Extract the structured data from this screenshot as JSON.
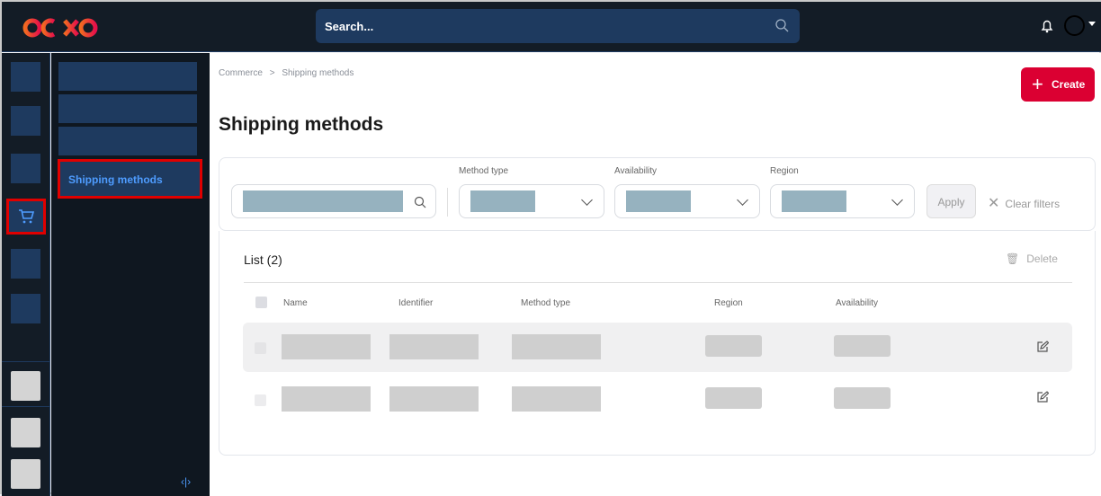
{
  "header": {
    "logo": "ibexa",
    "search_placeholder": "Search..."
  },
  "sidebar": {
    "active_item": "Shipping methods",
    "active_rail_icon": "cart-icon"
  },
  "breadcrumb": [
    "Commerce",
    "Shipping methods"
  ],
  "breadcrumb_sep": ">",
  "page_title": "Shipping methods",
  "create_label": "Create",
  "filters": {
    "method_type": "Method type",
    "availability": "Availability",
    "region": "Region",
    "apply": "Apply",
    "clear": "Clear filters"
  },
  "list": {
    "title": "List (2)",
    "delete": "Delete",
    "columns": [
      "Name",
      "Identifier",
      "Method type",
      "Region",
      "Availability"
    ]
  },
  "colors": {
    "accent": "#db0032",
    "nav": "#1e3a5f",
    "highlight": "#e00000"
  }
}
